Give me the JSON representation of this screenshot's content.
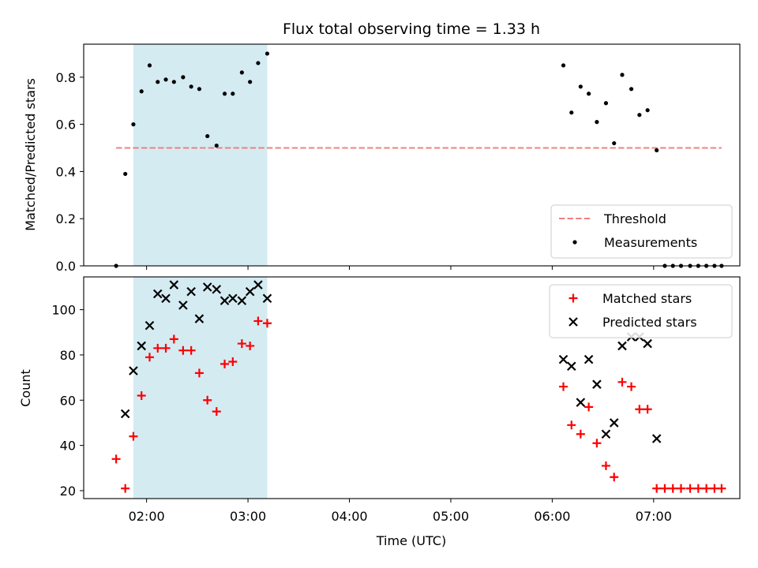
{
  "chart_data": {
    "type": "scatter",
    "title": "Flux total observing time = 1.33 h",
    "xlabel": "Time (UTC)",
    "xlim": [
      1.38,
      7.85
    ],
    "xticks": [
      {
        "value": 2.0,
        "label": "02:00"
      },
      {
        "value": 3.0,
        "label": "03:00"
      },
      {
        "value": 4.0,
        "label": "04:00"
      },
      {
        "value": 5.0,
        "label": "05:00"
      },
      {
        "value": 6.0,
        "label": "06:00"
      },
      {
        "value": 7.0,
        "label": "07:00"
      }
    ],
    "shaded_interval": {
      "x0": 1.87,
      "x1": 3.19,
      "color": "#add8e6"
    },
    "panels": [
      {
        "id": "ratio",
        "ylabel": "Matched/Predicted stars",
        "ylim": [
          0.0,
          0.94
        ],
        "yticks": [
          {
            "value": 0.0,
            "label": "0.0"
          },
          {
            "value": 0.2,
            "label": "0.2"
          },
          {
            "value": 0.4,
            "label": "0.4"
          },
          {
            "value": 0.6,
            "label": "0.6"
          },
          {
            "value": 0.8,
            "label": "0.8"
          }
        ],
        "legend": {
          "position": "lower right",
          "entries": [
            "Threshold",
            "Measurements"
          ]
        },
        "threshold": {
          "name": "Threshold",
          "y": 0.5,
          "x0": 1.7,
          "x1": 7.67,
          "color": "#f08080"
        },
        "series": [
          {
            "name": "Measurements",
            "marker": "dot",
            "color": "#000000",
            "points": [
              [
                1.7,
                0.0
              ],
              [
                1.79,
                0.39
              ],
              [
                1.87,
                0.6
              ],
              [
                1.95,
                0.74
              ],
              [
                2.03,
                0.85
              ],
              [
                2.11,
                0.78
              ],
              [
                2.19,
                0.79
              ],
              [
                2.27,
                0.78
              ],
              [
                2.36,
                0.8
              ],
              [
                2.44,
                0.76
              ],
              [
                2.52,
                0.75
              ],
              [
                2.6,
                0.55
              ],
              [
                2.69,
                0.51
              ],
              [
                2.77,
                0.73
              ],
              [
                2.85,
                0.73
              ],
              [
                2.94,
                0.82
              ],
              [
                3.02,
                0.78
              ],
              [
                3.1,
                0.86
              ],
              [
                3.19,
                0.9
              ],
              [
                6.11,
                0.85
              ],
              [
                6.19,
                0.65
              ],
              [
                6.28,
                0.76
              ],
              [
                6.36,
                0.73
              ],
              [
                6.44,
                0.61
              ],
              [
                6.53,
                0.69
              ],
              [
                6.61,
                0.52
              ],
              [
                6.69,
                0.81
              ],
              [
                6.78,
                0.75
              ],
              [
                6.86,
                0.64
              ],
              [
                6.94,
                0.66
              ],
              [
                7.03,
                0.49
              ],
              [
                7.11,
                0.0
              ],
              [
                7.19,
                0.0
              ],
              [
                7.27,
                0.0
              ],
              [
                7.36,
                0.0
              ],
              [
                7.44,
                0.0
              ],
              [
                7.52,
                0.0
              ],
              [
                7.6,
                0.0
              ],
              [
                7.67,
                0.0
              ]
            ]
          }
        ]
      },
      {
        "id": "counts",
        "ylabel": "Count",
        "ylim": [
          16.5,
          114.5
        ],
        "yticks": [
          {
            "value": 20,
            "label": "20"
          },
          {
            "value": 40,
            "label": "40"
          },
          {
            "value": 60,
            "label": "60"
          },
          {
            "value": 80,
            "label": "80"
          },
          {
            "value": 100,
            "label": "100"
          }
        ],
        "legend": {
          "position": "upper right",
          "entries": [
            "Matched stars",
            "Predicted stars"
          ]
        },
        "series": [
          {
            "name": "Matched stars",
            "marker": "plus",
            "color": "#ff0000",
            "points": [
              [
                1.7,
                34
              ],
              [
                1.79,
                21
              ],
              [
                1.87,
                44
              ],
              [
                1.95,
                62
              ],
              [
                2.03,
                79
              ],
              [
                2.11,
                83
              ],
              [
                2.19,
                83
              ],
              [
                2.27,
                87
              ],
              [
                2.36,
                82
              ],
              [
                2.44,
                82
              ],
              [
                2.52,
                72
              ],
              [
                2.6,
                60
              ],
              [
                2.69,
                55
              ],
              [
                2.77,
                76
              ],
              [
                2.85,
                77
              ],
              [
                2.94,
                85
              ],
              [
                3.02,
                84
              ],
              [
                3.1,
                95
              ],
              [
                3.19,
                94
              ],
              [
                6.11,
                66
              ],
              [
                6.19,
                49
              ],
              [
                6.28,
                45
              ],
              [
                6.36,
                57
              ],
              [
                6.44,
                41
              ],
              [
                6.53,
                31
              ],
              [
                6.61,
                26
              ],
              [
                6.69,
                68
              ],
              [
                6.78,
                66
              ],
              [
                6.86,
                56
              ],
              [
                6.94,
                56
              ],
              [
                7.03,
                21
              ],
              [
                7.11,
                21
              ],
              [
                7.19,
                21
              ],
              [
                7.27,
                21
              ],
              [
                7.36,
                21
              ],
              [
                7.44,
                21
              ],
              [
                7.52,
                21
              ],
              [
                7.6,
                21
              ],
              [
                7.67,
                21
              ]
            ]
          },
          {
            "name": "Predicted stars",
            "marker": "x",
            "color": "#000000",
            "points": [
              [
                1.79,
                54
              ],
              [
                1.87,
                73
              ],
              [
                1.95,
                84
              ],
              [
                2.03,
                93
              ],
              [
                2.11,
                107
              ],
              [
                2.19,
                105
              ],
              [
                2.27,
                111
              ],
              [
                2.36,
                102
              ],
              [
                2.44,
                108
              ],
              [
                2.52,
                96
              ],
              [
                2.6,
                110
              ],
              [
                2.69,
                109
              ],
              [
                2.77,
                104
              ],
              [
                2.85,
                105
              ],
              [
                2.94,
                104
              ],
              [
                3.02,
                108
              ],
              [
                3.1,
                111
              ],
              [
                3.19,
                105
              ],
              [
                6.11,
                78
              ],
              [
                6.19,
                75
              ],
              [
                6.28,
                59
              ],
              [
                6.36,
                78
              ],
              [
                6.44,
                67
              ],
              [
                6.53,
                45
              ],
              [
                6.61,
                50
              ],
              [
                6.69,
                84
              ],
              [
                6.78,
                88
              ],
              [
                6.86,
                88
              ],
              [
                6.94,
                85
              ],
              [
                7.03,
                43
              ]
            ]
          }
        ]
      }
    ]
  }
}
